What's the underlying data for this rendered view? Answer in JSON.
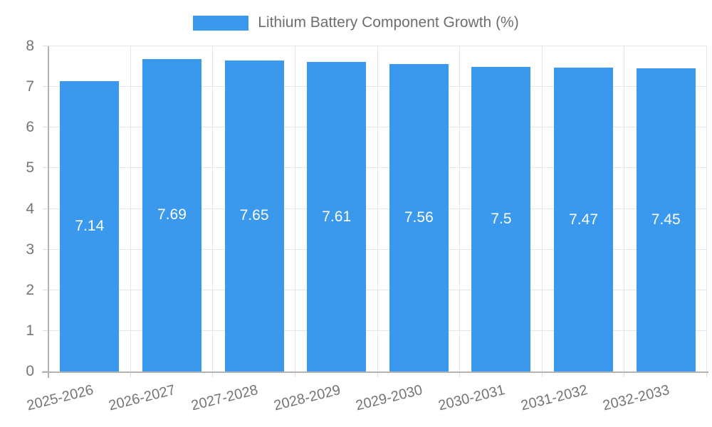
{
  "chart_data": {
    "type": "bar",
    "title": "Lithium Battery Component Growth (%)",
    "categories": [
      "2025-2026",
      "2026-2027",
      "2027-2028",
      "2028-2029",
      "2029-2030",
      "2030-2031",
      "2031-2032",
      "2032-2033"
    ],
    "values": [
      7.14,
      7.69,
      7.65,
      7.61,
      7.56,
      7.5,
      7.47,
      7.45
    ],
    "value_labels": [
      "7.14",
      "7.69",
      "7.65",
      "7.61",
      "7.56",
      "7.5",
      "7.47",
      "7.45"
    ],
    "xlabel": "",
    "ylabel": "",
    "ylim": [
      0,
      8
    ],
    "yticks": [
      "0",
      "1",
      "2",
      "3",
      "4",
      "5",
      "6",
      "7",
      "8"
    ],
    "grid": "on",
    "legend_position": "top",
    "bar_color": "#3A99EC",
    "value_label_color": "#FFFFFF"
  },
  "legend": {
    "label": "Lithium Battery Component Growth (%)"
  },
  "colors": {
    "background": "#FFFFFF",
    "grid": "#E6E6E6",
    "axis": "#B3B3B3",
    "tick": "#DCDCDC",
    "tick_text": "#757575",
    "title_text": "#6E6E6E"
  }
}
